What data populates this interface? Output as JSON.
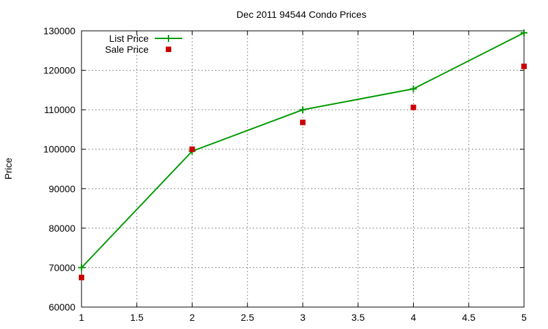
{
  "chart_data": {
    "type": "line",
    "title": "Dec 2011 94544 Condo Prices",
    "xlabel": "",
    "ylabel": "Price",
    "xlim": [
      1,
      5
    ],
    "ylim": [
      60000,
      130000
    ],
    "x_ticks": [
      "1",
      "1.5",
      "2",
      "2.5",
      "3",
      "3.5",
      "4",
      "4.5",
      "5"
    ],
    "y_ticks": [
      "60000",
      "70000",
      "80000",
      "90000",
      "100000",
      "110000",
      "120000",
      "130000"
    ],
    "grid": true,
    "legend_position": "top-left",
    "series": [
      {
        "name": "List Price",
        "style": "linespoints",
        "marker": "plus",
        "color": "#009900",
        "x": [
          1,
          2,
          3,
          4,
          5
        ],
        "y": [
          70000,
          99500,
          110000,
          115300,
          129500
        ]
      },
      {
        "name": "Sale Price",
        "style": "points",
        "marker": "square",
        "color": "#cc0000",
        "x": [
          1,
          2,
          3,
          4,
          5
        ],
        "y": [
          67500,
          100000,
          106800,
          110600,
          121000
        ]
      }
    ]
  }
}
